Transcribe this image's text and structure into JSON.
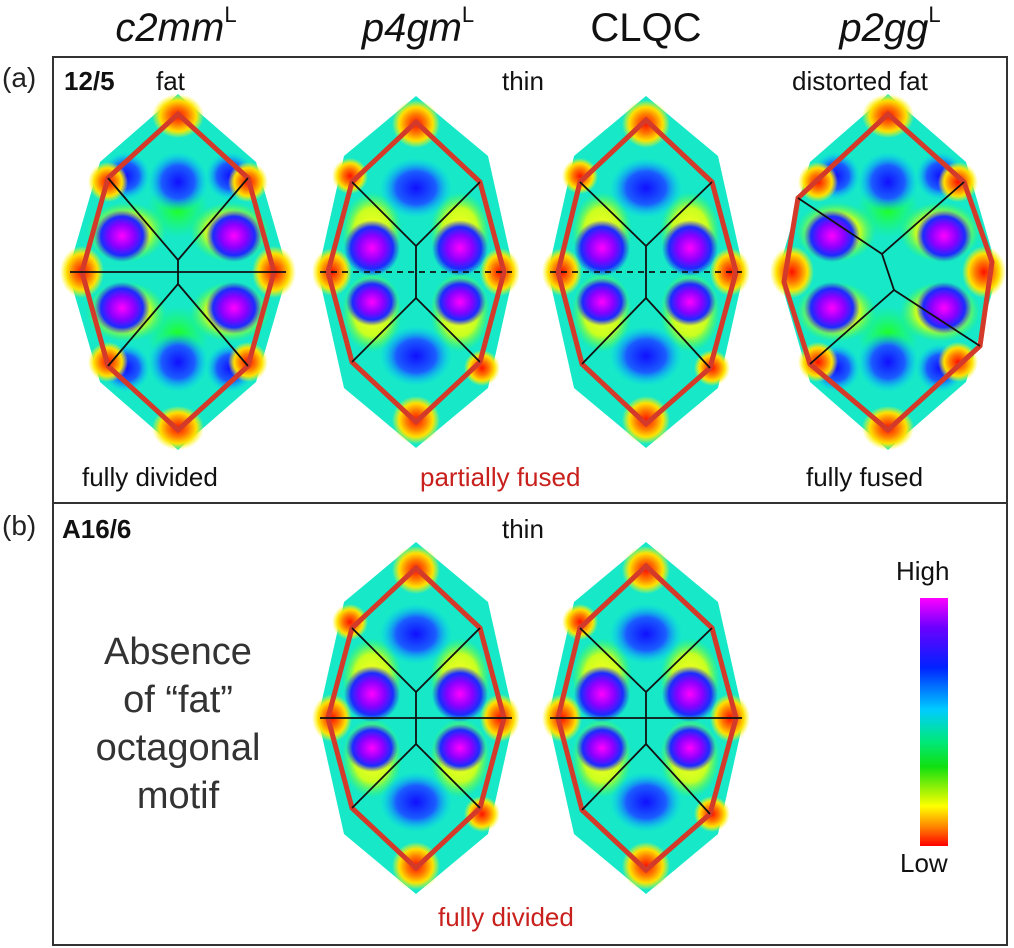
{
  "columns": [
    {
      "name": "c2mm",
      "sup": "L",
      "italic": true
    },
    {
      "name": "p4gm",
      "sup": "L",
      "italic": true
    },
    {
      "name": "CLQC",
      "sup": "",
      "italic": false
    },
    {
      "name": "p2gg",
      "sup": "L",
      "italic": true
    }
  ],
  "panel_a": {
    "label": "(a)",
    "code": "12/5",
    "fat": "fat",
    "thin": "thin",
    "distorted_fat": "distorted fat",
    "fully_divided": "fully divided",
    "partially_fused": "partially fused",
    "fully_fused": "fully fused"
  },
  "panel_b": {
    "label": "(b)",
    "code": "A16/6",
    "thin": "thin",
    "absence_line1": "Absence",
    "absence_line2": "of “fat”",
    "absence_line3": "octagonal",
    "absence_line4": "motif",
    "fully_divided": "fully divided"
  },
  "colorbar": {
    "high": "High",
    "low": "Low"
  },
  "colors": {
    "outline": "#d43a2a",
    "edge": "#111111",
    "accent_text": "#c8201c"
  }
}
